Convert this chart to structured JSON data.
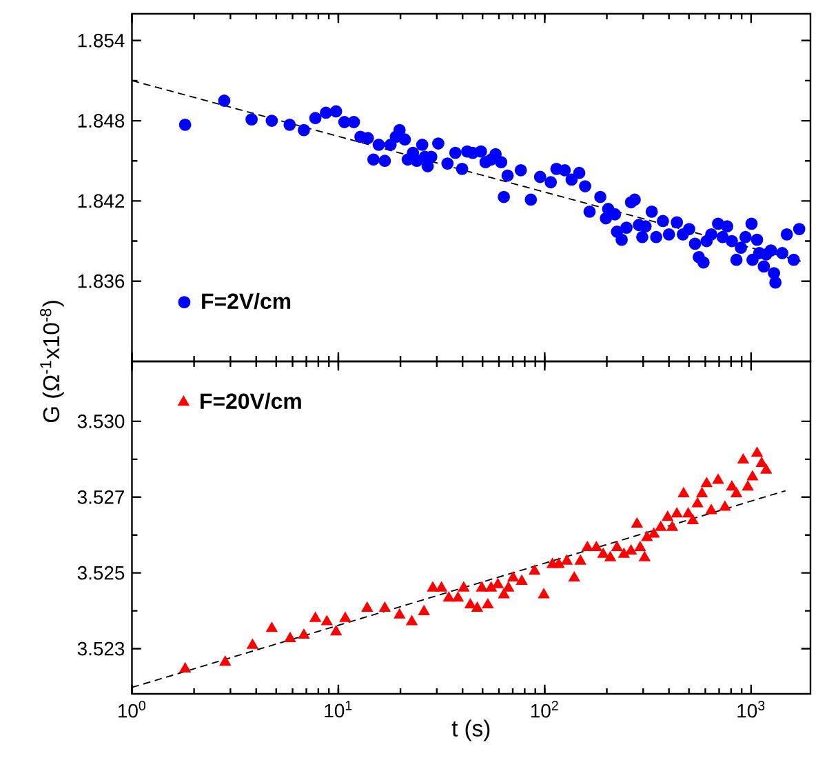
{
  "chart_data": [
    {
      "type": "scatter",
      "ylabel": "G (Ω$^{-1}$x10$^{-8}$)",
      "log": "x",
      "legend": "bottom left",
      "tick_labels": "y",
      "xlim": [
        1,
        1940
      ],
      "ylim": [
        1.83,
        1.856
      ],
      "xticks": [
        {
          "value": 1,
          "label": null
        },
        {
          "value": 10,
          "label": null
        },
        {
          "value": 100,
          "label": null
        },
        {
          "value": 1000,
          "label": null
        }
      ],
      "yticks": [
        1.836,
        1.842,
        1.848,
        1.854
      ],
      "series": [
        {
          "name": "F=2V/cm",
          "color": "#0000ff",
          "marker": "circle",
          "x": [
            1.81,
            2.8,
            3.8,
            4.76,
            5.81,
            6.81,
            7.74,
            8.71,
            9.75,
            10.7,
            11.9,
            12.8,
            13.9,
            14.8,
            15.7,
            16.8,
            17.9,
            19.0,
            19.8,
            21.0,
            21.7,
            23.0,
            24.0,
            25.5,
            26.3,
            27.1,
            28.2,
            30.5,
            33.8,
            36.9,
            39.8,
            42.1,
            44.8,
            49.1,
            51.7,
            55.0,
            57.8,
            61.5,
            63.4,
            66.1,
            76.6,
            85.7,
            95.0,
            107,
            114,
            125,
            135,
            147,
            157,
            165,
            186,
            198,
            203,
            219,
            224,
            236,
            249,
            262,
            273,
            286,
            297,
            308,
            330,
            347,
            374,
            400,
            437,
            467,
            501,
            535,
            558,
            588,
            609,
            641,
            692,
            728,
            766,
            807,
            849,
            893,
            940,
            1005,
            1016,
            1069,
            1096,
            1153,
            1183,
            1247,
            1291,
            1312,
            1416,
            1490,
            1610,
            1711
          ],
          "values": [
            1.8477,
            1.8495,
            1.8481,
            1.848,
            1.8477,
            1.8473,
            1.8482,
            1.8486,
            1.8487,
            1.8479,
            1.8479,
            1.8468,
            1.8467,
            1.8451,
            1.8462,
            1.845,
            1.8462,
            1.8468,
            1.8473,
            1.8466,
            1.8451,
            1.8456,
            1.845,
            1.8462,
            1.8453,
            1.8446,
            1.8453,
            1.8463,
            1.8448,
            1.8456,
            1.8444,
            1.8457,
            1.8456,
            1.8457,
            1.8449,
            1.8451,
            1.8455,
            1.8449,
            1.8423,
            1.8439,
            1.8443,
            1.8421,
            1.8438,
            1.8434,
            1.8444,
            1.8443,
            1.8436,
            1.8441,
            1.8431,
            1.8412,
            1.8423,
            1.8407,
            1.8414,
            1.841,
            1.8397,
            1.8391,
            1.84,
            1.8419,
            1.8421,
            1.8402,
            1.8393,
            1.8401,
            1.8412,
            1.8393,
            1.8405,
            1.8395,
            1.8404,
            1.8395,
            1.8399,
            1.8388,
            1.8378,
            1.8374,
            1.839,
            1.8395,
            1.8403,
            1.8393,
            1.8401,
            1.839,
            1.8376,
            1.8385,
            1.8393,
            1.8403,
            1.8376,
            1.8391,
            1.8381,
            1.8371,
            1.838,
            1.8383,
            1.8366,
            1.8359,
            1.8381,
            1.8395,
            1.8376,
            1.8399
          ]
        },
        {
          "type": "line",
          "color": "#000000",
          "line_style": "dashed",
          "marker": "none",
          "x": [
            1,
            1738
          ],
          "values": [
            1.851,
            1.8375
          ]
        }
      ]
    },
    {
      "type": "scatter",
      "xlabel": "t (s)",
      "log": "x",
      "legend": "top left",
      "xlim": [
        1,
        1940
      ],
      "ylim": [
        3.52166,
        3.53153
      ],
      "xticks": [
        {
          "value": 1,
          "label": "10$^{0}$"
        },
        {
          "value": 10,
          "label": "10$^{1}$"
        },
        {
          "value": 100,
          "label": "10$^{2}$"
        },
        {
          "value": 1000,
          "label": "10$^{3}$"
        }
      ],
      "yticks": [
        {
          "value": 3.523,
          "label": "3.523"
        },
        {
          "value": 3.52525,
          "label": "3.525"
        },
        {
          "value": 3.5275,
          "label": "3.527"
        },
        {
          "value": 3.52975,
          "label": "3.530"
        }
      ],
      "series": [
        {
          "name": "F=20V/cm",
          "color": "#ff0000",
          "marker": "triangle",
          "x": [
            1.81,
            2.83,
            3.84,
            4.76,
            5.84,
            6.81,
            7.74,
            8.8,
            9.75,
            10.8,
            13.8,
            16.8,
            19.8,
            22.7,
            26.0,
            28.7,
            31.6,
            34.3,
            38.0,
            40.5,
            43.6,
            47.1,
            49.6,
            53.0,
            55.0,
            59.3,
            63.4,
            66.7,
            70.3,
            77.4,
            89.3,
            99.0,
            109,
            117,
            128,
            139,
            149,
            161,
            178,
            192,
            208,
            224,
            242,
            262,
            280,
            290,
            305,
            313,
            338,
            365,
            394,
            415,
            437,
            471,
            496,
            522,
            550,
            578,
            609,
            641,
            692,
            747,
            807,
            849,
            916,
            964,
            1016,
            1069,
            1125,
            1183
          ],
          "values": [
            3.5224,
            3.5226,
            3.5231,
            3.5236,
            3.5233,
            3.5234,
            3.5239,
            3.5238,
            3.5235,
            3.5239,
            3.5242,
            3.5242,
            3.524,
            3.5238,
            3.5241,
            3.5248,
            3.5248,
            3.5245,
            3.5245,
            3.5248,
            3.5243,
            3.5242,
            3.5248,
            3.5243,
            3.5248,
            3.5249,
            3.5246,
            3.5248,
            3.5251,
            3.525,
            3.5253,
            3.5246,
            3.5255,
            3.5255,
            3.5256,
            3.5251,
            3.5256,
            3.526,
            3.526,
            3.5258,
            3.5257,
            3.526,
            3.5258,
            3.5259,
            3.5267,
            3.526,
            3.5257,
            3.5263,
            3.5264,
            3.5266,
            3.5269,
            3.5266,
            3.527,
            3.5276,
            3.527,
            3.5268,
            3.5273,
            3.5276,
            3.5279,
            3.5271,
            3.528,
            3.5272,
            3.5278,
            3.5276,
            3.5286,
            3.5278,
            3.5281,
            3.5288,
            3.5285,
            3.5283
          ]
        },
        {
          "type": "line",
          "color": "#000000",
          "line_style": "dashed",
          "marker": "none",
          "x": [
            1,
            1468
          ],
          "values": [
            3.52185,
            3.52769
          ]
        }
      ]
    }
  ]
}
